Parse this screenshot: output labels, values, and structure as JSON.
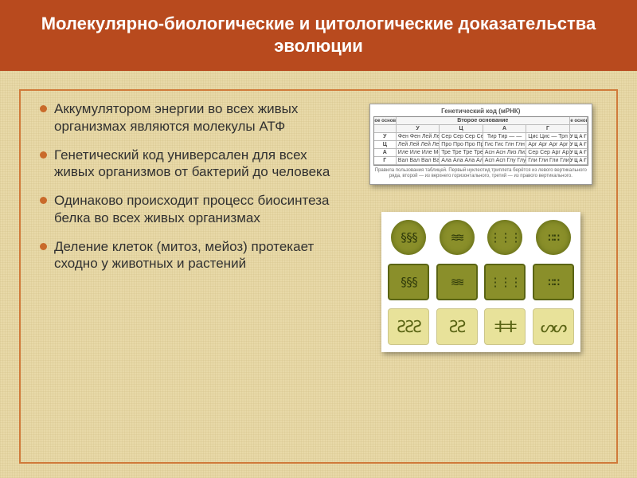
{
  "colors": {
    "title_bg": "#b84a1e",
    "title_text": "#ffffff",
    "frame_border": "#d07a3a",
    "bullet_color": "#c96a2a",
    "body_text": "#313131",
    "slide_bg": "#e8d9a8",
    "cell_olive": "#8a8f2a",
    "cell_olive_dark": "#5a6414",
    "cell_bg_light": "#e8e29a",
    "chrom_dark": "#2f3a0a"
  },
  "typography": {
    "title_fontsize": 22,
    "body_fontsize": 17
  },
  "title": "Молекулярно-биологические и цитологические доказательства эволюции",
  "bullets": [
    "Аккумулятором энергии во всех живых организмах являются молекулы АТФ",
    "Генетический код универсален для всех живых организмов от бактерий до человека",
    "Одинаково происходит процесс биосинтеза белка во всех живых организмах",
    "Деление клеток (митоз, мейоз) протекает сходно у животных и растений"
  ],
  "codon_table": {
    "caption_top": "Генетический код (мРНК)",
    "header_left": "Первое основание",
    "header_center": "Второе основание",
    "header_right": "Третье основание",
    "cols": [
      "У",
      "Ц",
      "А",
      "Г"
    ],
    "rows": [
      "У",
      "Ц",
      "А",
      "Г"
    ],
    "cells": [
      [
        "Фен Фен Лей Лей",
        "Сер Сер Сер Сер",
        "Тир Тир — —",
        "Цис Цис — Трп"
      ],
      [
        "Лей Лей Лей Лей",
        "Про Про Про Про",
        "Гис Гис Глн Глн",
        "Арг Арг Арг Арг"
      ],
      [
        "Иле Иле Иле Мет",
        "Тре Тре Тре Тре",
        "Асн Асн Лиз Лиз",
        "Сер Сер Арг Арг"
      ],
      [
        "Вал Вал Вал Вал",
        "Ала Ала Ала Ала",
        "Асп Асп Глу Глу",
        "Гли Гли Гли Гли"
      ]
    ],
    "caption_bottom": "Правила пользования таблицей. Первый нуклеотид триплета берётся из левого вертикального ряда, второй — из верхнего горизонтального, третий — из правого вертикального."
  }
}
